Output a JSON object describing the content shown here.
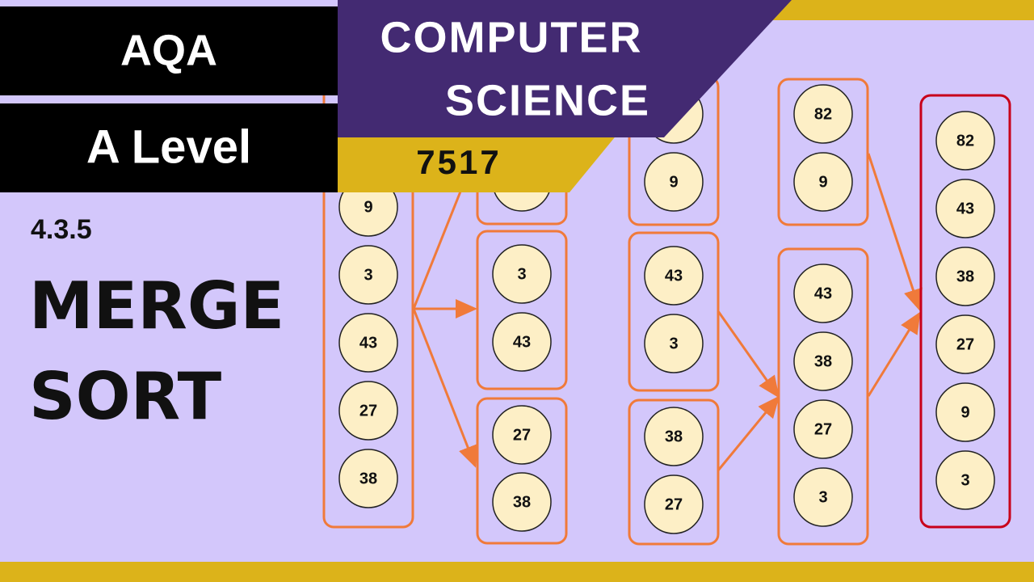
{
  "header": {
    "board": "AQA",
    "level": "A Level",
    "subject_line1": "COMPUTER",
    "subject_line2": "SCIENCE",
    "spec_code": "7517"
  },
  "topic": {
    "section": "4.3.5",
    "title_line1": "MERGE",
    "title_line2": "SORT"
  },
  "diagram": {
    "columns": [
      {
        "groups": [
          {
            "values": [
              null,
              "9",
              "3",
              "43",
              "27",
              "38"
            ]
          }
        ]
      },
      {
        "groups": [
          {
            "values": [
              null
            ]
          },
          {
            "values": [
              "3",
              "43"
            ]
          },
          {
            "values": [
              "27",
              "38"
            ]
          }
        ]
      },
      {
        "groups": [
          {
            "values": [
              null,
              "9"
            ]
          },
          {
            "values": [
              "43",
              "3"
            ]
          },
          {
            "values": [
              "38",
              "27"
            ]
          }
        ]
      },
      {
        "groups": [
          {
            "values": [
              "82",
              "9"
            ]
          },
          {
            "values": [
              "43",
              "38",
              "27",
              "3"
            ]
          }
        ]
      },
      {
        "groups": [
          {
            "values": [
              "82",
              "43",
              "38",
              "27",
              "9",
              "3"
            ]
          }
        ]
      }
    ]
  }
}
